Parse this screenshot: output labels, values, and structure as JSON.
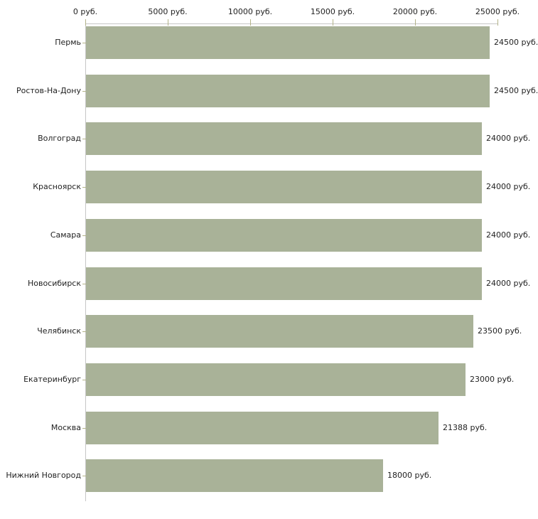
{
  "chart_data": {
    "type": "bar",
    "orientation": "horizontal",
    "title": "",
    "unit": "руб.",
    "categories": [
      "Пермь",
      "Ростов-На-Дону",
      "Волгоград",
      "Красноярск",
      "Самара",
      "Новосибирск",
      "Челябинск",
      "Екатеринбург",
      "Москва",
      "Нижний Новгород"
    ],
    "values": [
      24500,
      24500,
      24000,
      24000,
      24000,
      24000,
      23500,
      23000,
      21388,
      18000
    ],
    "value_labels": [
      "24500 руб.",
      "24500 руб.",
      "24000 руб.",
      "24000 руб.",
      "24000 руб.",
      "24000 руб.",
      "23500 руб.",
      "23000 руб.",
      "21388 руб.",
      "18000 руб."
    ],
    "x_axis": {
      "position": "top",
      "min": 0,
      "max": 25000,
      "ticks": [
        0,
        5000,
        10000,
        15000,
        20000,
        25000
      ],
      "tick_labels": [
        "0 руб.",
        "5000 руб.",
        "10000 руб.",
        "15000 руб.",
        "20000 руб.",
        "25000 руб."
      ]
    },
    "grid": "off",
    "legend": "none",
    "colors": {
      "bar": "#a9b298",
      "axis_line": "#c6c6c6",
      "tick": "#b3b389",
      "text": "#222222",
      "background": "#ffffff"
    }
  }
}
